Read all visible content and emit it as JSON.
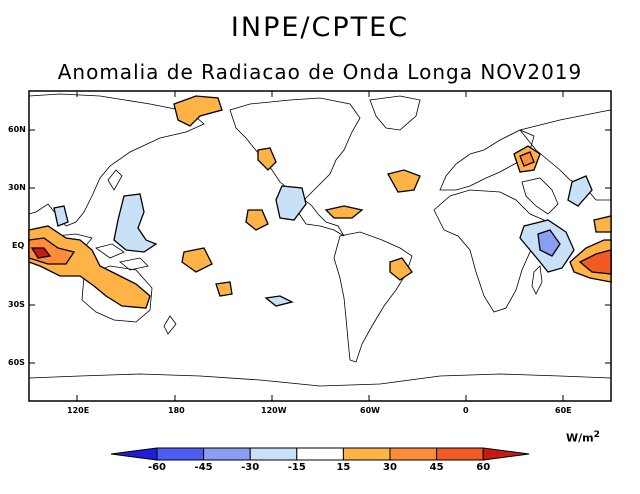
{
  "header": {
    "institution": "INPE/CPTEC",
    "title": "Anomalia de Radiacao de Onda Longa NOV2019"
  },
  "map": {
    "lat_labels": [
      "60N",
      "30N",
      "EQ",
      "30S",
      "60S"
    ],
    "lon_labels": [
      "120E",
      "180",
      "120W",
      "60W",
      "0",
      "60E"
    ]
  },
  "legend": {
    "unit_base": "W/m",
    "unit_exp": "2",
    "ticks": [
      "-60",
      "-45",
      "-30",
      "-15",
      "15",
      "30",
      "45",
      "60"
    ],
    "colors": [
      "#1f1fd9",
      "#4d5cf2",
      "#8c9ef2",
      "#c8e1f7",
      "#ffffff",
      "#ffb347",
      "#ff8c3a",
      "#f25a25",
      "#c81a14"
    ]
  }
}
